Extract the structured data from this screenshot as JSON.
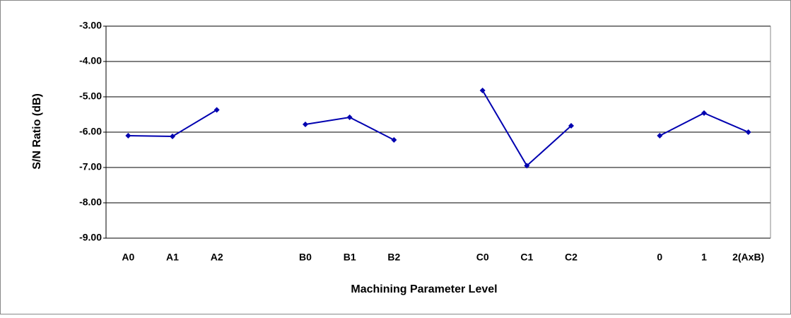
{
  "chart_data": {
    "type": "line",
    "xlabel": "Machining Parameter Level",
    "ylabel": "S/N Ratio (dB)",
    "categories": [
      "A0",
      "A1",
      "A2",
      null,
      "B0",
      "B1",
      "B2",
      null,
      "C0",
      "C1",
      "C2",
      null,
      "0",
      "1",
      "2(AxB)"
    ],
    "series": [
      {
        "color": "#0000b0",
        "values": [
          -6.1,
          -6.12,
          -5.37,
          null,
          -5.78,
          -5.58,
          -6.22,
          null,
          -4.82,
          -6.95,
          -5.82,
          null,
          -6.1,
          -5.46,
          -6.0
        ]
      }
    ],
    "ylim": [
      -9,
      -3
    ],
    "yticks": [
      {
        "value": -9,
        "label": "-9.00"
      },
      {
        "value": -8,
        "label": "-8.00"
      },
      {
        "value": -7,
        "label": "-7.00"
      },
      {
        "value": -6,
        "label": "-6.00"
      },
      {
        "value": -5,
        "label": "-5.00"
      },
      {
        "value": -4,
        "label": "-4.00"
      },
      {
        "value": -3,
        "label": "-3.00"
      }
    ],
    "grid": true
  }
}
